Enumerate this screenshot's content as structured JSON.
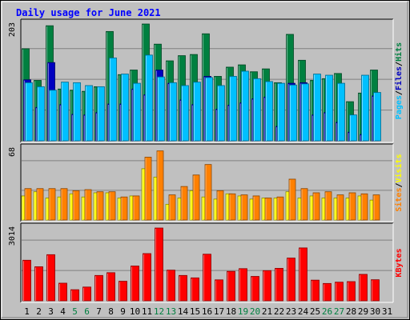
{
  "chart_data": {
    "type": "bar",
    "title": "Daily usage for June 2021",
    "categories": [
      "1",
      "2",
      "3",
      "4",
      "5",
      "6",
      "7",
      "8",
      "9",
      "10",
      "11",
      "12",
      "13",
      "14",
      "15",
      "16",
      "17",
      "18",
      "19",
      "20",
      "21",
      "22",
      "23",
      "24",
      "25",
      "26",
      "27",
      "28",
      "29",
      "30",
      "31"
    ],
    "weekend_days": [
      "5",
      "6",
      "12",
      "13",
      "19",
      "20",
      "26",
      "27"
    ],
    "panels": [
      {
        "ymax_label": "203",
        "ymax": 203,
        "series": [
          {
            "name": "Hits",
            "color": "#008040",
            "values": [
              160,
              105,
              200,
              90,
              88,
              86,
              94,
              190,
              115,
              123,
              203,
              168,
              139,
              148,
              150,
              186,
              112,
              128,
              132,
              120,
              125,
              101,
              185,
              140,
              105,
              108,
              117,
              68,
              83,
              123,
              null
            ]
          },
          {
            "name": "Files",
            "color": "#0000c0",
            "values": [
              106,
              58,
              136,
              63,
              46,
              45,
              49,
              64,
              64,
              90,
              80,
              123,
              100,
              71,
              63,
              112,
              55,
              62,
              66,
              73,
              76,
              25,
              100,
              101,
              45,
              49,
              32,
              15,
              11,
              78,
              null
            ]
          },
          {
            "name": "Pages",
            "color": "#00c0ff",
            "values": [
              101,
              94,
              88,
              102,
              101,
              96,
              94,
              144,
              116,
              100,
              149,
              111,
              101,
              96,
              102,
              110,
              96,
              112,
              121,
              108,
              103,
              100,
              97,
              99,
              116,
              114,
              100,
              45,
              114,
              84,
              null
            ]
          }
        ]
      },
      {
        "ymax_label": "68",
        "ymax": 68,
        "series": [
          {
            "name": "Visits",
            "color": "#ffff00",
            "values": [
              23,
              27,
              21,
              22,
              25,
              22,
              26,
              26,
              21,
              23,
              49,
              41,
              15,
              21,
              28,
              22,
              20,
              25,
              23,
              20,
              21,
              21,
              27,
              21,
              23,
              21,
              21,
              21,
              23,
              19,
              null
            ]
          },
          {
            "name": "Sites",
            "color": "#ff8000",
            "values": [
              30,
              30,
              30,
              30,
              28,
              29,
              27,
              27,
              22,
              23,
              60,
              66,
              24,
              32,
              43,
              53,
              28,
              25,
              24,
              23,
              21,
              22,
              39,
              30,
              26,
              27,
              24,
              26,
              25,
              24,
              null
            ]
          }
        ]
      },
      {
        "ymax_label": "3014",
        "ymax": 3014,
        "series": [
          {
            "name": "KBytes",
            "color": "#ff0000",
            "values": [
              1680,
              1410,
              1910,
              730,
              460,
              570,
              1050,
              1165,
              810,
              1440,
              1955,
              3014,
              1270,
              1050,
              950,
              1930,
              868,
              1220,
              1332,
              1010,
              1250,
              1345,
              1770,
              2190,
              856,
              718,
              772,
              795,
              1095,
              873,
              null
            ]
          }
        ]
      }
    ],
    "legend_placement": "right"
  }
}
